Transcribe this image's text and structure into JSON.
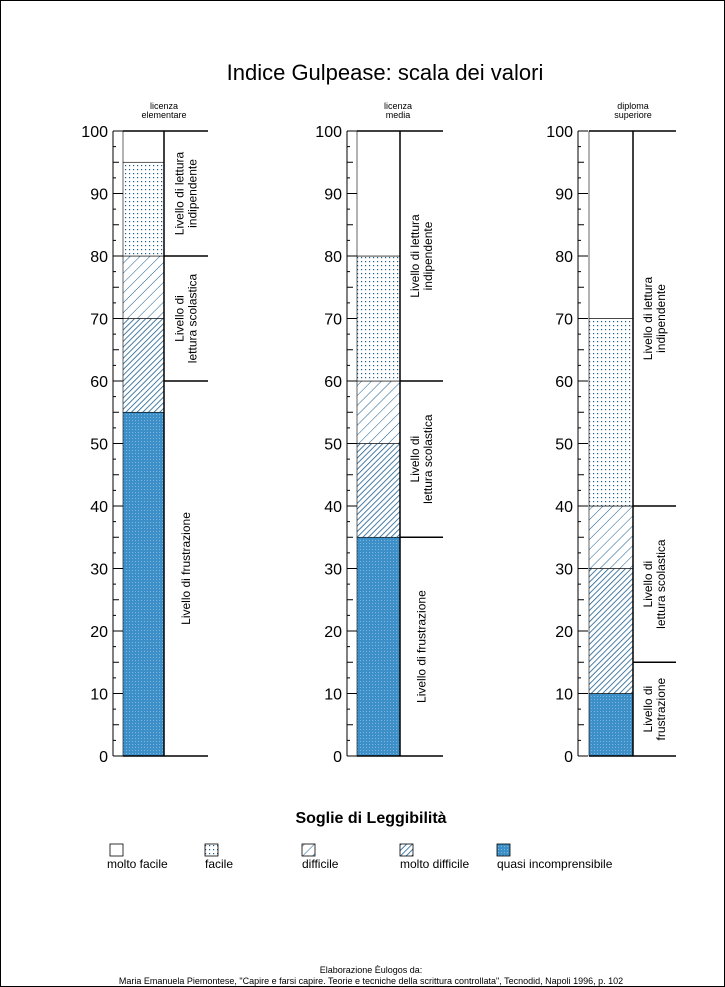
{
  "colors": {
    "fill": "#3d8fc8",
    "pattern_ink": "#1a5d8f",
    "line": "#000000",
    "background": "#ffffff"
  },
  "legend_title": "Soglie di Leggibilità",
  "legend": [
    {
      "key": "molto_facile",
      "label": "molto facile"
    },
    {
      "key": "facile",
      "label": "facile"
    },
    {
      "key": "difficile",
      "label": "difficile"
    },
    {
      "key": "molto_difficile",
      "label": "molto difficile"
    },
    {
      "key": "quasi_incomprensibile",
      "label": "quasi incomprensibile"
    }
  ],
  "credit": {
    "line1": "Elaborazione Èulogos da:",
    "line2": "Maria Emanuela Piemontese, \"Capire e farsi capire. Teorie e tecniche della scrittura controllata\", Tecnodid, Napoli 1996, p. 102"
  },
  "chart_data": {
    "type": "bar",
    "title": "Indice Gulpease: scala dei valori",
    "ylim": [
      0,
      100
    ],
    "yticks": [
      "0",
      "10",
      "20",
      "30",
      "40",
      "50",
      "60",
      "70",
      "80",
      "90",
      "100"
    ],
    "grid": false,
    "columns": [
      {
        "header": [
          "licenza",
          "elementare"
        ],
        "bands": [
          {
            "from": 0,
            "to": 55,
            "category": "quasi_incomprensibile"
          },
          {
            "from": 55,
            "to": 70,
            "category": "molto_difficile"
          },
          {
            "from": 70,
            "to": 80,
            "category": "difficile"
          },
          {
            "from": 80,
            "to": 95,
            "category": "facile"
          },
          {
            "from": 95,
            "to": 100,
            "category": "molto_facile"
          }
        ],
        "levels": [
          {
            "from": 0,
            "to": 60,
            "lines": [
              "Livello di frustrazione"
            ]
          },
          {
            "from": 60,
            "to": 80,
            "lines": [
              "Livello di",
              "lettura scolastica"
            ]
          },
          {
            "from": 80,
            "to": 100,
            "lines": [
              "Livello di lettura",
              "indipendente"
            ]
          }
        ]
      },
      {
        "header": [
          "licenza",
          "media"
        ],
        "bands": [
          {
            "from": 0,
            "to": 35,
            "category": "quasi_incomprensibile"
          },
          {
            "from": 35,
            "to": 50,
            "category": "molto_difficile"
          },
          {
            "from": 50,
            "to": 60,
            "category": "difficile"
          },
          {
            "from": 60,
            "to": 80,
            "category": "facile"
          },
          {
            "from": 80,
            "to": 100,
            "category": "molto_facile"
          }
        ],
        "levels": [
          {
            "from": 0,
            "to": 35,
            "lines": [
              "Livello di frustrazione"
            ]
          },
          {
            "from": 35,
            "to": 60,
            "lines": [
              "Livello di",
              "lettura scolastica"
            ]
          },
          {
            "from": 60,
            "to": 100,
            "lines": [
              "Livello di lettura",
              "indipendente"
            ]
          }
        ]
      },
      {
        "header": [
          "diploma",
          "superiore"
        ],
        "bands": [
          {
            "from": 0,
            "to": 10,
            "category": "quasi_incomprensibile"
          },
          {
            "from": 10,
            "to": 30,
            "category": "molto_difficile"
          },
          {
            "from": 30,
            "to": 40,
            "category": "difficile"
          },
          {
            "from": 40,
            "to": 70,
            "category": "facile"
          },
          {
            "from": 70,
            "to": 100,
            "category": "molto_facile"
          }
        ],
        "levels": [
          {
            "from": 0,
            "to": 15,
            "lines": [
              "Livello di",
              "frustrazione"
            ]
          },
          {
            "from": 15,
            "to": 40,
            "lines": [
              "Livello di",
              "lettura scolastica"
            ]
          },
          {
            "from": 40,
            "to": 100,
            "lines": [
              "Livello di lettura",
              "indipendente"
            ]
          }
        ]
      }
    ]
  }
}
